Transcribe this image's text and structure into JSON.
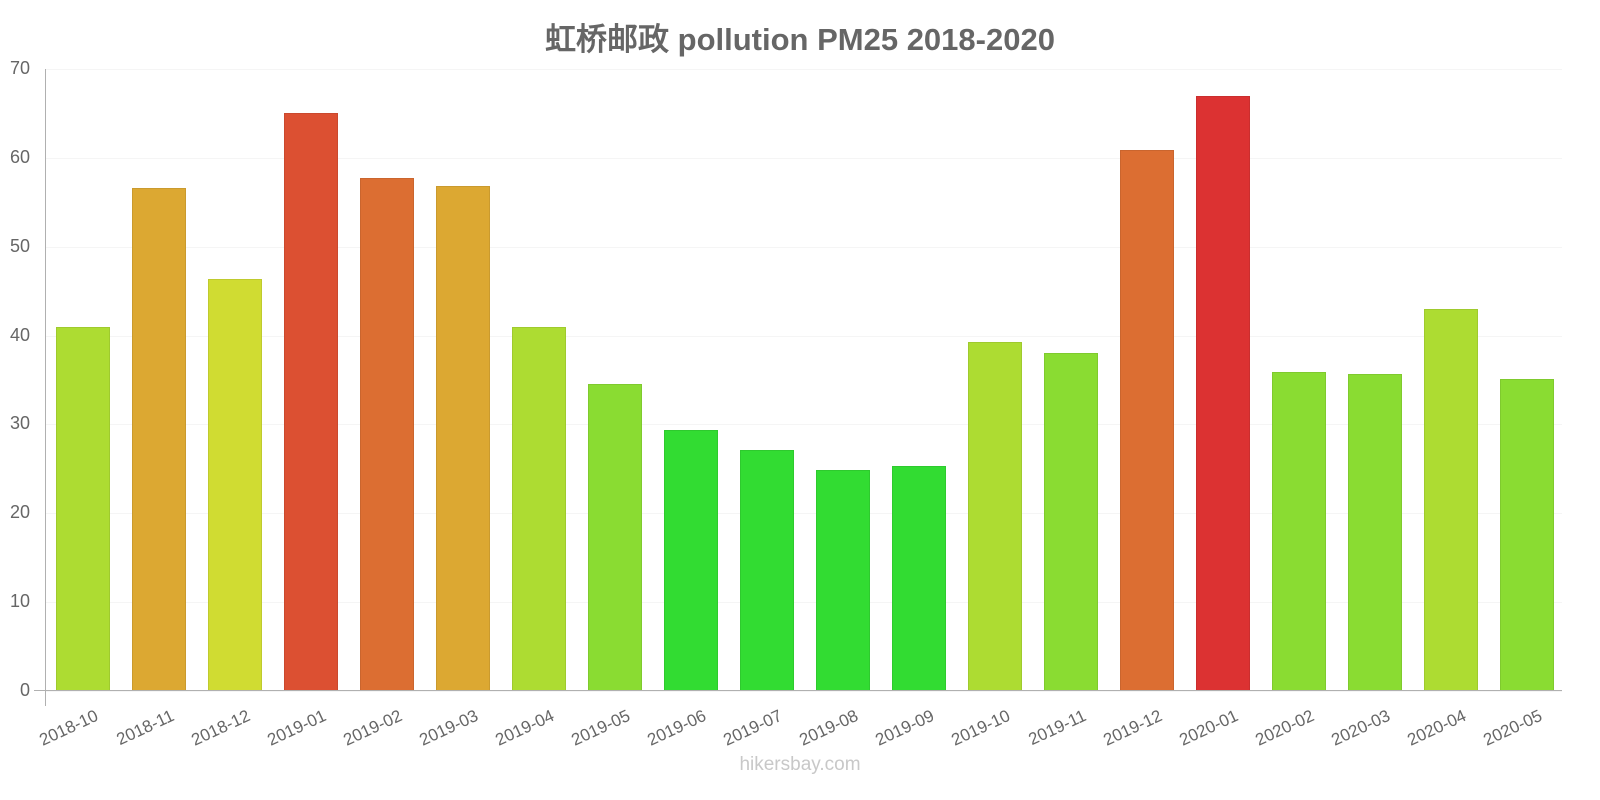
{
  "chart_data": {
    "type": "bar",
    "title": "虹桥邮政 pollution PM25 2018-2020",
    "xlabel": "",
    "ylabel": "",
    "ylim": [
      0,
      70
    ],
    "yticks": [
      0,
      10,
      20,
      30,
      40,
      50,
      60,
      70
    ],
    "grid": true,
    "legend": null,
    "categories": [
      "2018-10",
      "2018-11",
      "2018-12",
      "2019-01",
      "2019-02",
      "2019-03",
      "2019-04",
      "2019-05",
      "2019-06",
      "2019-07",
      "2019-08",
      "2019-09",
      "2019-10",
      "2019-11",
      "2019-12",
      "2020-01",
      "2020-02",
      "2020-03",
      "2020-04",
      "2020-05"
    ],
    "values": [
      41,
      56.6,
      46.4,
      65,
      57.7,
      56.8,
      41,
      34.5,
      29.4,
      27.1,
      24.9,
      25.3,
      39.3,
      38,
      60.9,
      67,
      35.9,
      35.7,
      43,
      35.1
    ],
    "colors": [
      "#addc32",
      "#dca832",
      "#d0dc32",
      "#dc5032",
      "#dc6e32",
      "#dca832",
      "#addc32",
      "#8adc32",
      "#32dc32",
      "#32dc32",
      "#32dc32",
      "#32dc32",
      "#addc32",
      "#8adc32",
      "#dc6e32",
      "#dc3232",
      "#8adc32",
      "#8adc32",
      "#addc32",
      "#8adc32"
    ]
  },
  "footer": "hikersbay.com"
}
